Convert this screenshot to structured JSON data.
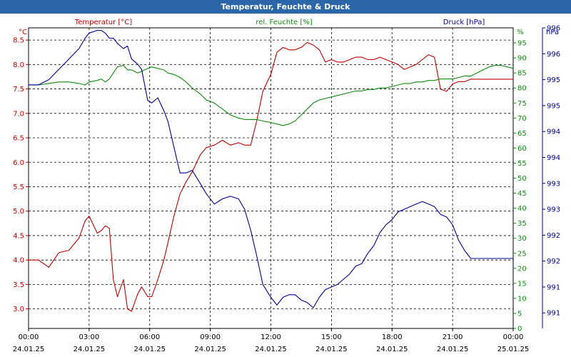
{
  "window": {
    "title": "Temperatur, Feuchte & Druck"
  },
  "colors": {
    "temperature": "#c00000",
    "humidity": "#118811",
    "pressure": "#000099",
    "grid": "#000000",
    "frame": "#2a66a8"
  },
  "chart_data": {
    "type": "line",
    "title": "Temperatur, Feuchte & Druck",
    "x_tick_times": [
      "00:00",
      "03:00",
      "06:00",
      "09:00",
      "12:00",
      "15:00",
      "18:00",
      "21:00",
      "00:00"
    ],
    "x_tick_dates": [
      "24.01.25",
      "24.01.25",
      "24.01.25",
      "24.01.25",
      "24.01.25",
      "24.01.25",
      "24.01.25",
      "24.01.25",
      "25.01.25"
    ],
    "axes": {
      "left": {
        "unit": "°C",
        "ylim": [
          2.6,
          8.75
        ],
        "ticks": [
          "3.0",
          "3.5",
          "4.0",
          "4.5",
          "5.0",
          "5.5",
          "6.0",
          "6.5",
          "7.0",
          "7.5",
          "8.0",
          "8.5"
        ],
        "tick_values": [
          3.0,
          3.5,
          4.0,
          4.5,
          5.0,
          5.5,
          6.0,
          6.5,
          7.0,
          7.5,
          8.0,
          8.5
        ]
      },
      "right1": {
        "unit": "%",
        "ylim": [
          0,
          100
        ],
        "ticks": [
          "0",
          "5",
          "10",
          "15",
          "20",
          "25",
          "30",
          "35",
          "40",
          "45",
          "50",
          "55",
          "60",
          "65",
          "70",
          "75",
          "80",
          "85",
          "90",
          "95"
        ],
        "tick_values": [
          0,
          5,
          10,
          15,
          20,
          25,
          30,
          35,
          40,
          45,
          50,
          55,
          60,
          65,
          70,
          75,
          80,
          85,
          90,
          95
        ]
      },
      "right2": {
        "unit": "hPa",
        "ylim": [
          990.6,
          996.4
        ],
        "ticks": [
          "991",
          "991",
          "992",
          "992",
          "993",
          "993",
          "994",
          "994",
          "995",
          "995",
          "996",
          "996"
        ],
        "tick_values": [
          990.9,
          991.4,
          991.9,
          992.4,
          992.9,
          993.4,
          993.9,
          994.4,
          994.9,
          995.4,
          995.9,
          996.4
        ]
      }
    },
    "series": [
      {
        "name": "Temperatur [°C]",
        "axis": "left",
        "x": [
          0,
          0.5,
          1,
          1.5,
          2,
          2.5,
          2.8,
          3,
          3.4,
          3.6,
          3.8,
          4,
          4.2,
          4.4,
          4.7,
          4.9,
          5.1,
          5.4,
          5.6,
          5.9,
          6.1,
          6.4,
          6.7,
          6.9,
          7.2,
          7.5,
          7.8,
          8.1,
          8.5,
          8.8,
          9.2,
          9.6,
          10,
          10.4,
          10.7,
          11,
          11.3,
          11.6,
          12,
          12.3,
          12.6,
          12.9,
          13.2,
          13.5,
          13.8,
          14.1,
          14.4,
          14.7,
          15,
          15.3,
          15.6,
          15.9,
          16.2,
          16.5,
          16.8,
          17.1,
          17.4,
          17.7,
          18,
          18.3,
          18.6,
          18.9,
          19.2,
          19.5,
          19.8,
          20.1,
          20.4,
          20.7,
          21,
          21.3,
          21.6,
          21.9,
          22.2,
          22.5,
          22.8,
          23.1,
          23.4,
          23.7,
          24
        ],
        "values": [
          4.0,
          4.0,
          3.85,
          4.15,
          4.2,
          4.45,
          4.8,
          4.9,
          4.55,
          4.6,
          4.7,
          4.65,
          3.6,
          3.25,
          3.6,
          3.0,
          2.95,
          3.3,
          3.45,
          3.25,
          3.25,
          3.6,
          4.0,
          4.35,
          4.9,
          5.35,
          5.6,
          5.8,
          6.15,
          6.3,
          6.35,
          6.45,
          6.35,
          6.4,
          6.35,
          6.35,
          6.85,
          7.45,
          7.8,
          8.25,
          8.35,
          8.3,
          8.3,
          8.35,
          8.45,
          8.4,
          8.3,
          8.05,
          8.1,
          8.05,
          8.05,
          8.1,
          8.15,
          8.15,
          8.1,
          8.1,
          8.15,
          8.1,
          8.05,
          8.0,
          7.9,
          7.95,
          8.0,
          8.1,
          8.2,
          8.15,
          7.5,
          7.45,
          7.6,
          7.65,
          7.65,
          7.7,
          7.7,
          7.7,
          7.7,
          7.7,
          7.7,
          7.7,
          7.7
        ]
      },
      {
        "name": "rel. Feuchte [%]",
        "axis": "right1",
        "x": [
          0,
          0.5,
          1,
          1.5,
          2,
          2.5,
          2.8,
          3,
          3.4,
          3.6,
          3.8,
          4,
          4.2,
          4.4,
          4.7,
          4.9,
          5.1,
          5.4,
          5.6,
          5.9,
          6.1,
          6.4,
          6.7,
          6.9,
          7.2,
          7.5,
          7.8,
          8.1,
          8.5,
          8.8,
          9.2,
          9.6,
          10,
          10.4,
          10.7,
          11,
          11.3,
          11.6,
          12,
          12.3,
          12.6,
          12.9,
          13.2,
          13.5,
          13.8,
          14.1,
          14.4,
          14.7,
          15,
          15.3,
          15.6,
          15.9,
          16.2,
          16.5,
          16.8,
          17.1,
          17.4,
          17.7,
          18,
          18.3,
          18.6,
          18.9,
          19.2,
          19.5,
          19.8,
          20.1,
          20.4,
          20.7,
          21,
          21.3,
          21.6,
          21.9,
          22.2,
          22.5,
          22.8,
          23.1,
          23.4,
          23.7,
          24
        ],
        "values": [
          81,
          81,
          81.5,
          82,
          82,
          81.5,
          81,
          82,
          82.5,
          83,
          82,
          83,
          85,
          87,
          87.5,
          86,
          86,
          85,
          85.5,
          86.5,
          87,
          86.5,
          86,
          85,
          84.5,
          83.5,
          82,
          80,
          78,
          76,
          75,
          73,
          71,
          70,
          69.5,
          69.5,
          69.5,
          69,
          68.5,
          68,
          67.5,
          68,
          69,
          71,
          73,
          75,
          76,
          76.5,
          77,
          77.5,
          78,
          78.5,
          79,
          79,
          79.5,
          79.5,
          80,
          80,
          80.5,
          81,
          81.5,
          81.5,
          82,
          82,
          82.5,
          82.5,
          83,
          83,
          83,
          83.5,
          84,
          84,
          85,
          86,
          87,
          87.5,
          87.5,
          87,
          86.5
        ],
        "color_key": "humidity"
      },
      {
        "name": "Druck [hPa]",
        "axis": "right2",
        "x": [
          0,
          0.5,
          1,
          1.5,
          2,
          2.5,
          2.8,
          3,
          3.4,
          3.6,
          3.8,
          4,
          4.2,
          4.4,
          4.7,
          4.9,
          5.1,
          5.4,
          5.6,
          5.9,
          6.1,
          6.4,
          6.7,
          6.9,
          7.2,
          7.5,
          7.8,
          8.1,
          8.5,
          8.8,
          9.2,
          9.6,
          10,
          10.4,
          10.7,
          11,
          11.3,
          11.6,
          12,
          12.3,
          12.6,
          12.9,
          13.2,
          13.5,
          13.8,
          14.1,
          14.4,
          14.7,
          15,
          15.3,
          15.6,
          15.9,
          16.2,
          16.5,
          16.8,
          17.1,
          17.4,
          17.7,
          18,
          18.3,
          18.6,
          18.9,
          19.2,
          19.5,
          19.8,
          20.1,
          20.4,
          20.7,
          21,
          21.3,
          21.6,
          21.9,
          22.2,
          22.5,
          22.8,
          23.1,
          23.4,
          23.7,
          24
        ],
        "values": [
          995.3,
          995.3,
          995.4,
          995.6,
          995.8,
          996.0,
          996.2,
          996.3,
          996.35,
          996.35,
          996.3,
          996.2,
          996.2,
          996.1,
          996.0,
          996.05,
          995.8,
          995.7,
          995.6,
          995.0,
          994.95,
          995.05,
          994.8,
          994.6,
          994.1,
          993.6,
          993.6,
          993.65,
          993.4,
          993.2,
          993.0,
          993.1,
          993.15,
          993.1,
          992.9,
          992.5,
          992.0,
          991.45,
          991.2,
          991.05,
          991.2,
          991.25,
          991.25,
          991.15,
          991.1,
          991.0,
          991.2,
          991.35,
          991.4,
          991.45,
          991.55,
          991.65,
          991.8,
          991.85,
          992.05,
          992.2,
          992.45,
          992.6,
          992.7,
          992.85,
          992.9,
          992.95,
          993.0,
          993.05,
          993.0,
          992.95,
          992.8,
          992.75,
          992.6,
          992.3,
          992.1,
          991.95,
          991.95,
          991.95,
          991.95,
          991.95,
          991.95,
          991.95,
          991.95
        ],
        "color_key": "pressure"
      }
    ],
    "series_display_labels": [
      "Temperatur [°C]",
      "rel. Feuchte [%]",
      "Druck [hPa]"
    ]
  }
}
